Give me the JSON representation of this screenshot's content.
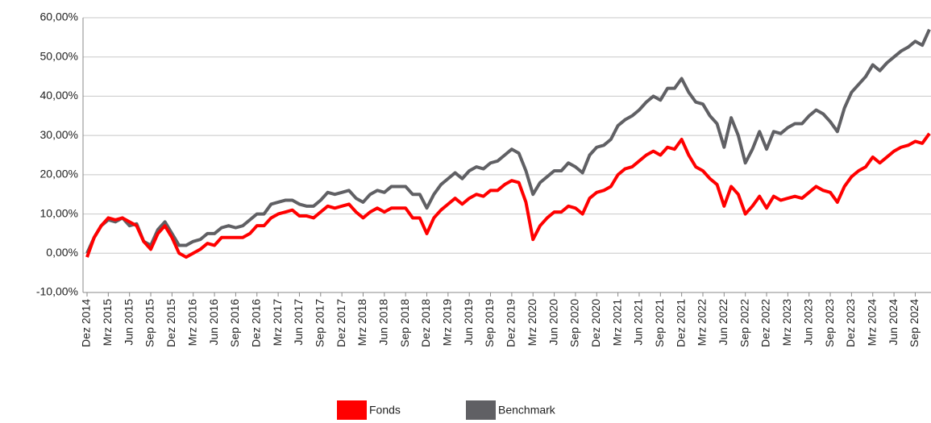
{
  "chart_data": {
    "type": "line",
    "categories": [
      "Dez 2014",
      null,
      null,
      "Mrz 2015",
      null,
      null,
      "Jun 2015",
      null,
      null,
      "Sep 2015",
      null,
      null,
      "Dez 2015",
      null,
      null,
      "Mrz 2016",
      null,
      null,
      "Jun 2016",
      null,
      null,
      "Sep 2016",
      null,
      null,
      "Dez 2016",
      null,
      null,
      "Mrz 2017",
      null,
      null,
      "Jun 2017",
      null,
      null,
      "Sep 2017",
      null,
      null,
      "Dez 2017",
      null,
      null,
      "Mrz 2018",
      null,
      null,
      "Jun 2018",
      null,
      null,
      "Sep 2018",
      null,
      null,
      "Dez 2018",
      null,
      null,
      "Mrz 2019",
      null,
      null,
      "Jun 2019",
      null,
      null,
      "Sep 2019",
      null,
      null,
      "Dez 2019",
      null,
      null,
      "Mrz 2020",
      null,
      null,
      "Jun 2020",
      null,
      null,
      "Sep 2020",
      null,
      null,
      "Dez 2020",
      null,
      null,
      "Mrz 2021",
      null,
      null,
      "Jun 2021",
      null,
      null,
      "Sep 2021",
      null,
      null,
      "Dez 2021",
      null,
      null,
      "Mrz 2022",
      null,
      null,
      "Jun 2022",
      null,
      null,
      "Sep 2022",
      null,
      null,
      "Dez 2022",
      null,
      null,
      "Mrz 2023",
      null,
      null,
      "Jun 2023",
      null,
      null,
      "Sep 2023",
      null,
      null,
      "Dez 2023",
      null,
      null,
      "Mrz 2024",
      null,
      null,
      "Jun 2024",
      null,
      null,
      "Sep 2024",
      null,
      null
    ],
    "series": [
      {
        "name": "Fonds",
        "color": "#ff0000",
        "values": [
          -1,
          4,
          7,
          9,
          8.5,
          9,
          8,
          7,
          3,
          1,
          5,
          7,
          4,
          0,
          -1,
          0,
          1,
          2.5,
          2,
          4,
          4,
          4,
          4,
          5,
          7,
          7,
          9,
          10,
          10.5,
          11,
          9.5,
          9.5,
          9,
          10.5,
          12,
          11.5,
          12,
          12.5,
          10.5,
          9,
          10.5,
          11.5,
          10.5,
          11.5,
          11.5,
          11.5,
          9,
          9,
          5,
          9,
          11,
          12.5,
          14,
          12.5,
          14,
          15,
          14.5,
          16,
          16,
          17.5,
          18.5,
          18,
          13,
          3.5,
          7,
          9,
          10.5,
          10.5,
          12,
          11.5,
          10,
          14,
          15.5,
          16,
          17,
          20,
          21.5,
          22,
          23.5,
          25,
          26,
          25,
          27,
          26.5,
          29,
          25,
          22,
          21,
          19,
          17.5,
          12,
          17,
          15,
          10,
          12,
          14.5,
          11.5,
          14.5,
          13.5,
          14,
          14.5,
          14,
          15.5,
          17,
          16,
          15.5,
          13,
          17,
          19.5,
          21,
          22,
          24.5,
          23,
          24.5,
          26,
          27,
          27.5,
          28.5,
          28,
          30.5
        ]
      },
      {
        "name": "Benchmark",
        "color": "#606064",
        "values": [
          0,
          4,
          7,
          8.5,
          8,
          9,
          7,
          7.5,
          3,
          2,
          6,
          8,
          5,
          2,
          2,
          3,
          3.5,
          5,
          5,
          6.5,
          7,
          6.5,
          7,
          8.5,
          10,
          10,
          12.5,
          13,
          13.5,
          13.5,
          12.5,
          12,
          12,
          13.5,
          15.5,
          15,
          15.5,
          16,
          14,
          13,
          15,
          16,
          15.5,
          17,
          17,
          17,
          15,
          15,
          11.5,
          15,
          17.5,
          19,
          20.5,
          19,
          21,
          22,
          21.5,
          23,
          23.5,
          25,
          26.5,
          25.5,
          21,
          15,
          18,
          19.5,
          21,
          21,
          23,
          22,
          20.5,
          25,
          27,
          27.5,
          29,
          32.5,
          34,
          35,
          36.5,
          38.5,
          40,
          39,
          42,
          42,
          44.5,
          41,
          38.5,
          38,
          35,
          33,
          27,
          34.5,
          30,
          23,
          26.5,
          31,
          26.5,
          31,
          30.5,
          32,
          33,
          33,
          35,
          36.5,
          35.5,
          33.5,
          31,
          37,
          41,
          43,
          45,
          48,
          46.5,
          48.5,
          50,
          51.5,
          52.5,
          54,
          53,
          57
        ]
      }
    ],
    "ylim": [
      -10,
      60
    ],
    "yticks": [
      {
        "value": -10,
        "label": "-10,00%"
      },
      {
        "value": 0,
        "label": "0,00%"
      },
      {
        "value": 10,
        "label": "10,00%"
      },
      {
        "value": 20,
        "label": "20,00%"
      },
      {
        "value": 30,
        "label": "30,00%"
      },
      {
        "value": 40,
        "label": "40,00%"
      },
      {
        "value": 50,
        "label": "50,00%"
      },
      {
        "value": 60,
        "label": "60,00%"
      }
    ],
    "grid": true,
    "legend": "bottom"
  }
}
